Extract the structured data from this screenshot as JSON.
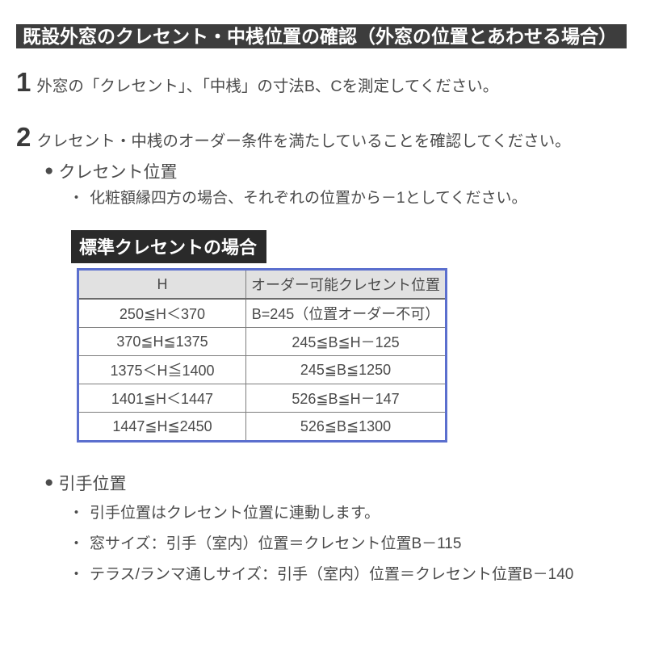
{
  "banner": {
    "title": "既設外窓のクレセント・中桟位置の確認（外窓の位置とあわせる場合）"
  },
  "bullets": {
    "section": "●",
    "item": "・"
  },
  "steps": [
    {
      "num": "1",
      "text": "外窓の「クレセント」、「中桟」の寸法B、Cを測定してください。"
    },
    {
      "num": "2",
      "text": "クレセント・中桟のオーダー条件を満たしていることを確認してください。"
    }
  ],
  "crescent_section": {
    "title": "クレセント位置",
    "note": "化粧額縁四方の場合、それぞれの位置から－1としてください。"
  },
  "table_label": "標準クレセントの場合",
  "table": {
    "headers": [
      "H",
      "オーダー可能クレセント位置"
    ],
    "rows": [
      [
        "250≦H＜370",
        "B=245（位置オーダー不可）"
      ],
      [
        "370≦H≦1375",
        "245≦B≦H－125"
      ],
      [
        "1375＜H≦1400",
        "245≦B≦1250"
      ],
      [
        "1401≦H＜1447",
        "526≦B≦H－147"
      ],
      [
        "1447≦H≦2450",
        "526≦B≦1300"
      ]
    ]
  },
  "handle_section": {
    "title": "引手位置",
    "notes": [
      "引手位置はクレセント位置に連動します。",
      "窓サイズ：引手（室内）位置＝クレセント位置B－115",
      "テラス/ランマ通しサイズ：引手（室内）位置＝クレセント位置B－140"
    ]
  },
  "colors": {
    "banner_bg": "#3d3d3d",
    "label_bg": "#2a2a2a",
    "table_border": "#5b6fce",
    "table_header_bg": "#e1e1e1",
    "body_text": "#4a4a4a"
  }
}
